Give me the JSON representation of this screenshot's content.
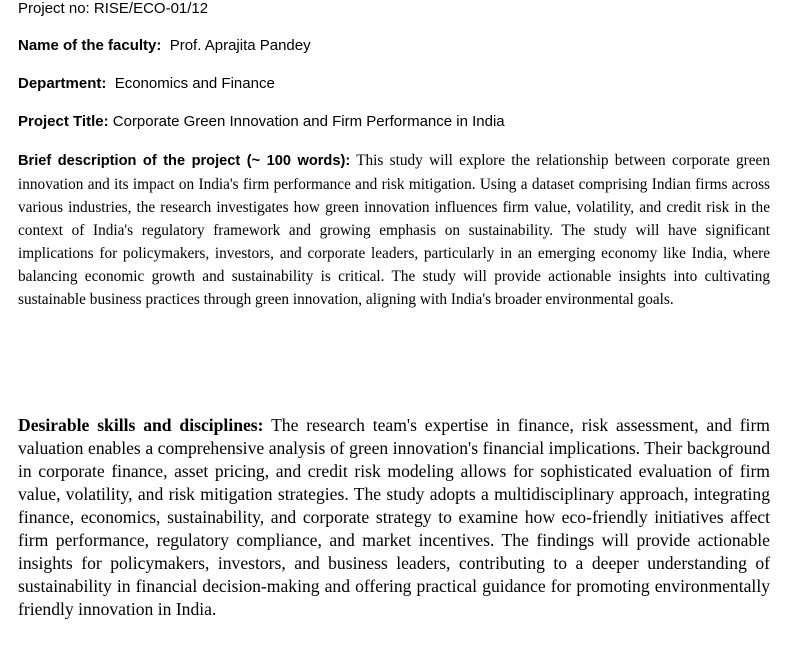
{
  "project_no": {
    "label": "Project no:",
    "value": "RISE/ECO-01/12"
  },
  "faculty": {
    "label": "Name of the faculty:",
    "value": "Prof. Aprajita Pandey"
  },
  "department": {
    "label": "Department:",
    "value": "Economics and Finance"
  },
  "project_title": {
    "label": "Project Title:",
    "value": "Corporate Green Innovation and Firm Performance in India"
  },
  "brief_description": {
    "label": "Brief description of the project (~ 100 words):",
    "text": "This study will explore the relationship between corporate green innovation and its impact on India's firm performance and risk mitigation. Using a dataset comprising Indian firms across various industries, the research investigates how green innovation influences firm value, volatility, and credit risk in the context of India's regulatory framework and growing emphasis on sustainability. The study will have significant implications for policymakers, investors, and corporate leaders, particularly in an emerging economy like India, where balancing economic growth and sustainability is critical. The study will provide actionable insights into cultivating sustainable business practices through green innovation, aligning with India's broader environmental goals."
  },
  "desirable_skills": {
    "label": "Desirable skills and disciplines:",
    "text": "The research team's expertise in finance, risk assessment, and firm valuation enables a comprehensive analysis of green innovation's financial implications. Their background in corporate finance, asset pricing, and credit risk modeling allows for sophisticated evaluation of firm value, volatility, and risk mitigation strategies. The study adopts a multidisciplinary approach, integrating finance, economics, sustainability, and corporate strategy to examine how eco-friendly initiatives affect firm performance, regulatory compliance, and market incentives. The findings will provide actionable insights for policymakers, investors, and business leaders, contributing to a deeper understanding of sustainability in financial decision-making and offering practical guidance for promoting environmentally friendly innovation in India."
  }
}
